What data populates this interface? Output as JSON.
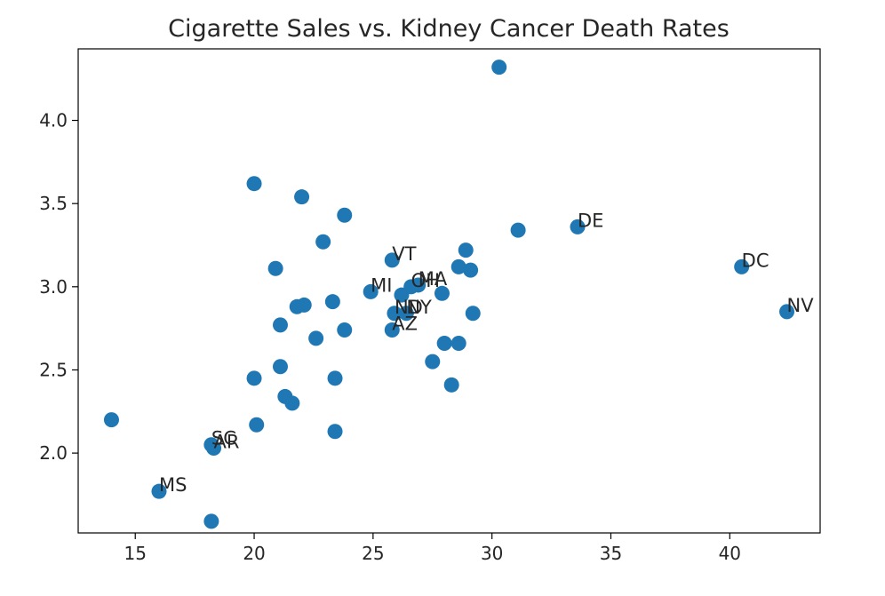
{
  "chart_data": {
    "type": "scatter",
    "title": "Cigarette Sales vs. Kidney Cancer Death Rates",
    "xlabel": "",
    "ylabel": "",
    "xlim": [
      12.6,
      43.8
    ],
    "ylim": [
      1.52,
      4.43
    ],
    "xticks": [
      15,
      20,
      25,
      30,
      35,
      40
    ],
    "yticks": [
      1.5,
      2.0,
      2.5,
      3.0,
      3.5,
      4.0
    ],
    "xtick_labels": [
      "15",
      "20",
      "25",
      "30",
      "35",
      "40"
    ],
    "ytick_labels": [
      "1.5",
      "2.0",
      "2.5",
      "3.0",
      "3.5",
      "4.0"
    ],
    "grid": false,
    "point_color": "#1f77b4",
    "points": [
      {
        "x": 14.0,
        "y": 2.2,
        "label": ""
      },
      {
        "x": 16.0,
        "y": 1.77,
        "label": "MS"
      },
      {
        "x": 18.2,
        "y": 2.05,
        "label": "SC"
      },
      {
        "x": 18.3,
        "y": 2.03,
        "label": "AR"
      },
      {
        "x": 18.2,
        "y": 1.59,
        "label": ""
      },
      {
        "x": 20.0,
        "y": 3.62,
        "label": ""
      },
      {
        "x": 20.0,
        "y": 2.45,
        "label": ""
      },
      {
        "x": 20.1,
        "y": 2.17,
        "label": ""
      },
      {
        "x": 20.9,
        "y": 3.11,
        "label": ""
      },
      {
        "x": 21.1,
        "y": 2.77,
        "label": ""
      },
      {
        "x": 21.1,
        "y": 2.52,
        "label": ""
      },
      {
        "x": 21.3,
        "y": 2.34,
        "label": ""
      },
      {
        "x": 21.6,
        "y": 2.3,
        "label": ""
      },
      {
        "x": 21.8,
        "y": 2.88,
        "label": ""
      },
      {
        "x": 22.0,
        "y": 3.54,
        "label": ""
      },
      {
        "x": 22.1,
        "y": 2.89,
        "label": ""
      },
      {
        "x": 22.6,
        "y": 2.69,
        "label": ""
      },
      {
        "x": 22.9,
        "y": 3.27,
        "label": ""
      },
      {
        "x": 23.3,
        "y": 2.91,
        "label": ""
      },
      {
        "x": 23.4,
        "y": 2.45,
        "label": ""
      },
      {
        "x": 23.4,
        "y": 2.13,
        "label": ""
      },
      {
        "x": 23.8,
        "y": 3.43,
        "label": ""
      },
      {
        "x": 23.8,
        "y": 2.74,
        "label": ""
      },
      {
        "x": 24.9,
        "y": 2.97,
        "label": "MI"
      },
      {
        "x": 25.8,
        "y": 3.16,
        "label": "VT"
      },
      {
        "x": 25.9,
        "y": 2.84,
        "label": "ND"
      },
      {
        "x": 25.8,
        "y": 2.74,
        "label": "AZ"
      },
      {
        "x": 26.2,
        "y": 2.95,
        "label": ""
      },
      {
        "x": 26.4,
        "y": 2.84,
        "label": "NY"
      },
      {
        "x": 26.6,
        "y": 3.0,
        "label": "OH"
      },
      {
        "x": 26.9,
        "y": 3.01,
        "label": "MA"
      },
      {
        "x": 27.5,
        "y": 2.55,
        "label": ""
      },
      {
        "x": 27.9,
        "y": 2.96,
        "label": ""
      },
      {
        "x": 28.0,
        "y": 2.66,
        "label": ""
      },
      {
        "x": 28.3,
        "y": 2.41,
        "label": ""
      },
      {
        "x": 28.6,
        "y": 2.66,
        "label": ""
      },
      {
        "x": 28.6,
        "y": 3.12,
        "label": ""
      },
      {
        "x": 28.9,
        "y": 3.22,
        "label": ""
      },
      {
        "x": 29.1,
        "y": 3.1,
        "label": ""
      },
      {
        "x": 29.2,
        "y": 2.84,
        "label": ""
      },
      {
        "x": 30.3,
        "y": 4.32,
        "label": ""
      },
      {
        "x": 31.1,
        "y": 3.34,
        "label": ""
      },
      {
        "x": 33.6,
        "y": 3.36,
        "label": "DE"
      },
      {
        "x": 40.5,
        "y": 3.12,
        "label": "DC"
      },
      {
        "x": 42.4,
        "y": 2.85,
        "label": "NV"
      }
    ]
  }
}
